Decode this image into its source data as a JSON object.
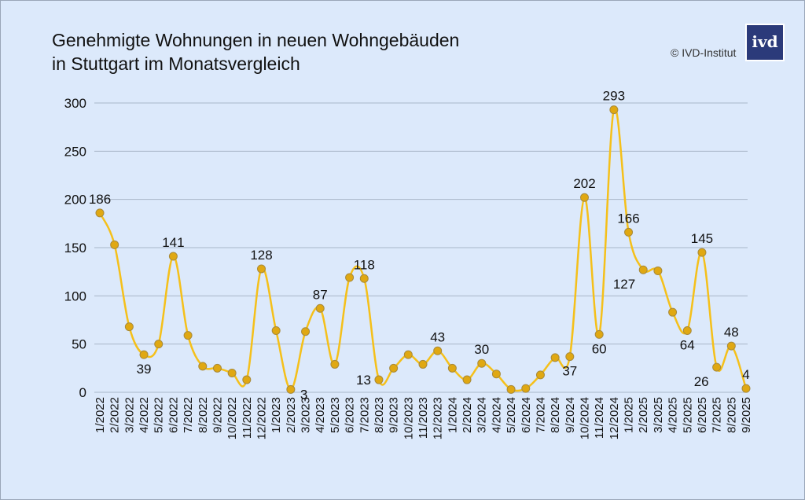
{
  "chart_data": {
    "type": "line",
    "title": [
      "Genehmigte Wohnungen in neuen Wohngebäuden",
      "in Stuttgart im Monatsvergleich"
    ],
    "source": "© IVD-Institut",
    "logo_text": "ivd",
    "xlabel": "",
    "ylabel": "",
    "ylim": [
      0,
      300
    ],
    "yticks": [
      0,
      50,
      100,
      150,
      200,
      250,
      300
    ],
    "grid": true,
    "line_color": "#f5c01a",
    "marker_color": "#e0a812",
    "categories": [
      "1/2022",
      "2/2022",
      "3/2022",
      "4/2022",
      "5/2022",
      "6/2022",
      "7/2022",
      "8/2022",
      "9/2022",
      "10/2022",
      "11/2022",
      "12/2022",
      "1/2023",
      "2/2023",
      "3/2023",
      "4/2023",
      "5/2023",
      "6/2023",
      "7/2023",
      "8/2023",
      "9/2023",
      "10/2023",
      "11/2023",
      "12/2023",
      "1/2024",
      "2/2024",
      "3/2024",
      "4/2024",
      "5/2024",
      "6/2024",
      "7/2024",
      "8/2024",
      "9/2024",
      "10/2024",
      "11/2024",
      "12/2024",
      "1/2025",
      "2/2025",
      "3/2025",
      "4/2025",
      "5/2025",
      "6/2025",
      "7/2025",
      "8/2025",
      "9/2025"
    ],
    "values": [
      186,
      153,
      68,
      39,
      50,
      141,
      59,
      27,
      25,
      20,
      13,
      128,
      64,
      3,
      63,
      87,
      29,
      119,
      118,
      13,
      25,
      39,
      29,
      43,
      25,
      13,
      30,
      19,
      3,
      4,
      18,
      36,
      37,
      202,
      60,
      293,
      166,
      127,
      126,
      83,
      64,
      145,
      26,
      48,
      4
    ],
    "data_labels": [
      {
        "index": 0,
        "text": "186",
        "pos": "above"
      },
      {
        "index": 3,
        "text": "39",
        "pos": "below"
      },
      {
        "index": 5,
        "text": "141",
        "pos": "above"
      },
      {
        "index": 11,
        "text": "128",
        "pos": "above"
      },
      {
        "index": 13,
        "text": "3",
        "pos": "right"
      },
      {
        "index": 15,
        "text": "87",
        "pos": "above"
      },
      {
        "index": 18,
        "text": "118",
        "pos": "above"
      },
      {
        "index": 19,
        "text": "13",
        "pos": "left"
      },
      {
        "index": 23,
        "text": "43",
        "pos": "above"
      },
      {
        "index": 26,
        "text": "30",
        "pos": "above"
      },
      {
        "index": 32,
        "text": "37",
        "pos": "below"
      },
      {
        "index": 33,
        "text": "202",
        "pos": "above"
      },
      {
        "index": 34,
        "text": "60",
        "pos": "below"
      },
      {
        "index": 35,
        "text": "293",
        "pos": "above"
      },
      {
        "index": 36,
        "text": "166",
        "pos": "above"
      },
      {
        "index": 37,
        "text": "127",
        "pos": "below-left"
      },
      {
        "index": 40,
        "text": "64",
        "pos": "below"
      },
      {
        "index": 41,
        "text": "145",
        "pos": "above"
      },
      {
        "index": 42,
        "text": "26",
        "pos": "below-left"
      },
      {
        "index": 43,
        "text": "48",
        "pos": "above"
      },
      {
        "index": 44,
        "text": "4",
        "pos": "above"
      }
    ]
  }
}
